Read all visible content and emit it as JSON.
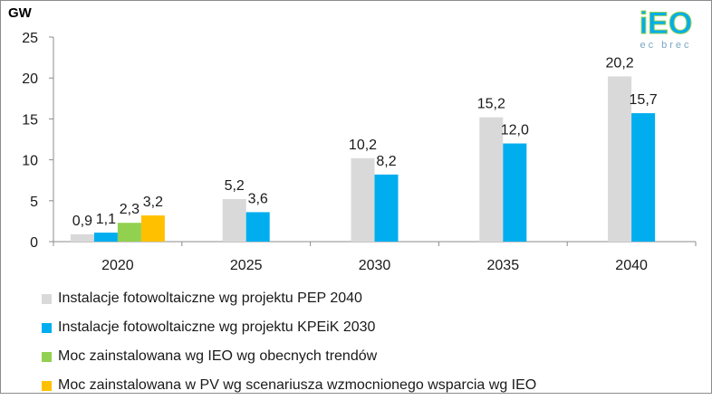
{
  "chart_data": {
    "type": "bar",
    "ylabel": "GW",
    "ylim": [
      0,
      25
    ],
    "yticks": [
      0,
      5,
      10,
      15,
      20,
      25
    ],
    "grid": false,
    "legend_position": "bottom",
    "categories": [
      "2020",
      "2025",
      "2030",
      "2035",
      "2040"
    ],
    "series": [
      {
        "name": "Instalacje fotowoltaiczne wg projektu PEP 2040",
        "color": "#d9d9d9",
        "values": [
          0.9,
          5.2,
          10.2,
          15.2,
          20.2
        ],
        "labels": [
          "0,9",
          "5,2",
          "10,2",
          "15,2",
          "20,2"
        ]
      },
      {
        "name": "Instalacje fotowoltaiczne wg projektu KPEiK 2030",
        "color": "#00aeef",
        "values": [
          1.1,
          3.6,
          8.2,
          12.0,
          15.7
        ],
        "labels": [
          "1,1",
          "3,6",
          "8,2",
          "12,0",
          "15,7"
        ]
      },
      {
        "name": "Moc zainstalowana wg IEO wg obecnych trendów",
        "color": "#92d050",
        "values": [
          2.3,
          null,
          null,
          null,
          null
        ],
        "labels": [
          "2,3",
          "",
          "",
          "",
          ""
        ]
      },
      {
        "name": "Moc zainstalowana w PV wg scenariusza wzmocnionego wsparcia wg IEO",
        "color": "#ffc000",
        "values": [
          3.2,
          null,
          null,
          null,
          null
        ],
        "labels": [
          "3,2",
          "",
          "",
          "",
          ""
        ]
      }
    ]
  },
  "logo": {
    "text": "iEO",
    "subtext": "ec brec",
    "colors": [
      "#00aeef",
      "#92d050"
    ]
  }
}
